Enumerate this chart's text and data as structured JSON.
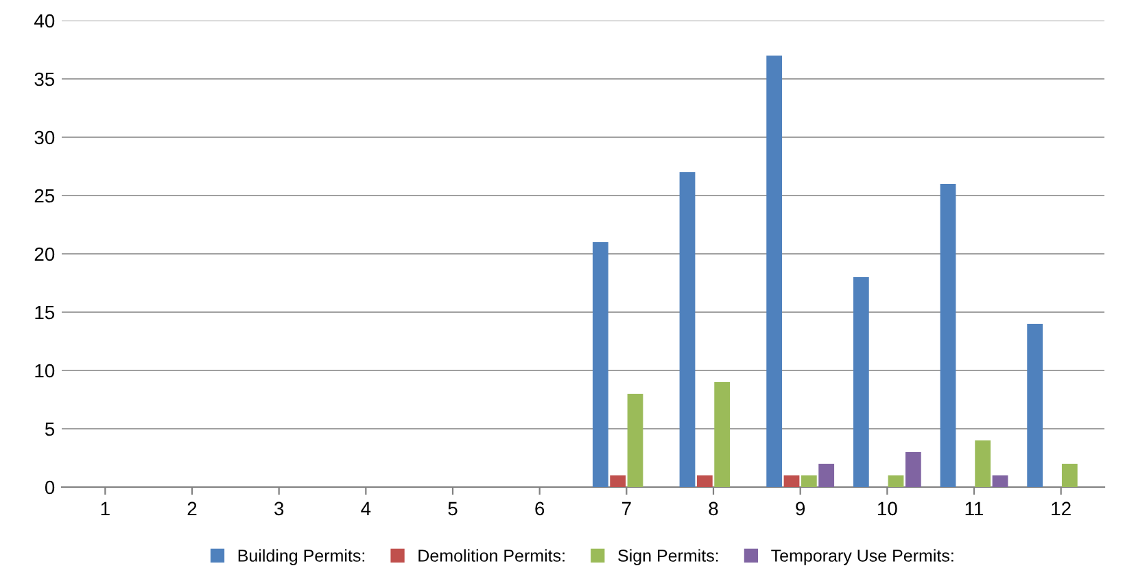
{
  "chart_data": {
    "type": "bar",
    "categories": [
      "1",
      "2",
      "3",
      "4",
      "5",
      "6",
      "7",
      "8",
      "9",
      "10",
      "11",
      "12"
    ],
    "series": [
      {
        "name": "Building Permits:",
        "color": "#4f81bd",
        "values": [
          0,
          0,
          0,
          0,
          0,
          0,
          21,
          27,
          37,
          18,
          26,
          14
        ]
      },
      {
        "name": "Demolition Permits:",
        "color": "#c0504d",
        "values": [
          0,
          0,
          0,
          0,
          0,
          0,
          1,
          1,
          1,
          0,
          0,
          0
        ]
      },
      {
        "name": "Sign Permits:",
        "color": "#9bbb59",
        "values": [
          0,
          0,
          0,
          0,
          0,
          0,
          8,
          9,
          1,
          1,
          4,
          2
        ]
      },
      {
        "name": "Temporary Use Permits:",
        "color": "#8064a2",
        "values": [
          0,
          0,
          0,
          0,
          0,
          0,
          0,
          0,
          2,
          3,
          1,
          0
        ]
      }
    ],
    "ylim": [
      0,
      40
    ],
    "yticks": [
      0,
      5,
      10,
      15,
      20,
      25,
      30,
      35,
      40
    ],
    "grid": "y",
    "legend": "bottom"
  }
}
